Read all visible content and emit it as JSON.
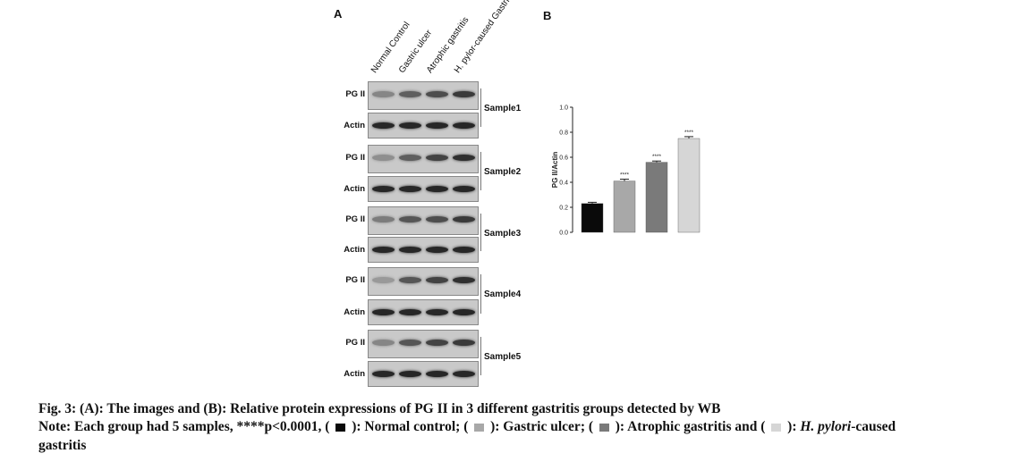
{
  "panelA": {
    "letter": "A",
    "lanes": [
      "Normal Control",
      "Gastric ulcer",
      "Atrophic gastritis",
      "H. pylor-caused Gastritis"
    ],
    "row_labels": {
      "pg": "PG II",
      "actin": "Actin"
    },
    "samples": [
      {
        "label": "Sample1",
        "pg_intensity": [
          0.35,
          0.55,
          0.65,
          0.75
        ],
        "actin_intensity": [
          0.85,
          0.85,
          0.85,
          0.85
        ]
      },
      {
        "label": "Sample2",
        "pg_intensity": [
          0.3,
          0.55,
          0.7,
          0.8
        ],
        "actin_intensity": [
          0.85,
          0.85,
          0.85,
          0.85
        ]
      },
      {
        "label": "Sample3",
        "pg_intensity": [
          0.4,
          0.6,
          0.65,
          0.75
        ],
        "actin_intensity": [
          0.85,
          0.85,
          0.85,
          0.85
        ]
      },
      {
        "label": "Sample4",
        "pg_intensity": [
          0.25,
          0.6,
          0.7,
          0.8
        ],
        "actin_intensity": [
          0.85,
          0.85,
          0.85,
          0.85
        ]
      },
      {
        "label": "Sample5",
        "pg_intensity": [
          0.35,
          0.6,
          0.7,
          0.75
        ],
        "actin_intensity": [
          0.85,
          0.85,
          0.85,
          0.85
        ]
      }
    ]
  },
  "chart_data": {
    "type": "bar",
    "panel_letter": "B",
    "categories": [
      "Normal control",
      "Gastric ulcer",
      "Atrophic gastritis",
      "H. pylori-caused gastritis"
    ],
    "values": [
      0.23,
      0.41,
      0.56,
      0.75
    ],
    "errors": [
      0.01,
      0.015,
      0.01,
      0.015
    ],
    "annotations": [
      "",
      "****",
      "****",
      "****"
    ],
    "colors": [
      "#0a0a0a",
      "#a8a8a8",
      "#7a7a7a",
      "#d6d6d6"
    ],
    "ylabel": "PG II/Actin",
    "xlabel": "",
    "ylim": [
      0,
      1.0
    ],
    "yticks": [
      "0.0",
      "0.2",
      "0.4",
      "0.6",
      "0.8",
      "1.0"
    ]
  },
  "caption": {
    "line1": "Fig. 3: (A): The images and (B): Relative protein expressions of PG II in 3 different gastritis groups detected by WB",
    "note_prefix": "Note: Each group had 5 samples, ****p<0.0001, (",
    "legend_normal": "): Normal control; (",
    "legend_ulcer": "): Gastric ulcer; (",
    "legend_atrophic": "): Atrophic gastritis and (",
    "legend_hp_close": "):",
    "hp_italic": "H. pylori",
    "hp_rest": "-caused",
    "line3": "gastritis"
  }
}
